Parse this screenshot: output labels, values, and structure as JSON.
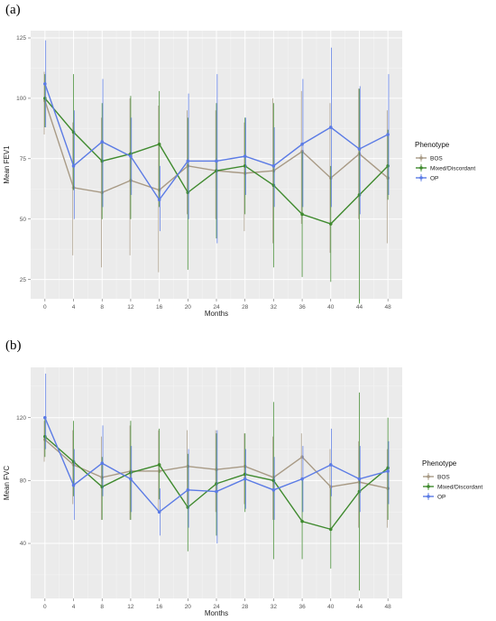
{
  "chart_data": [
    {
      "panel_label": "(a)",
      "type": "line",
      "xlabel": "Months",
      "ylabel": "Mean FEV1",
      "xticks": [
        0,
        4,
        8,
        12,
        16,
        20,
        24,
        28,
        32,
        36,
        40,
        44,
        48
      ],
      "yticks": [
        25,
        50,
        75,
        100,
        125
      ],
      "xlim": [
        -2,
        50
      ],
      "ylim": [
        17,
        128
      ],
      "grid": true,
      "legend": {
        "title": "Phenotype",
        "position": "right"
      },
      "x": [
        0,
        4,
        8,
        12,
        16,
        20,
        24,
        28,
        32,
        36,
        40,
        44,
        48
      ],
      "series": [
        {
          "name": "BOS",
          "color": "#a89a85",
          "values": [
            99,
            63,
            61,
            66,
            62,
            72,
            70,
            69,
            70,
            78,
            67,
            77,
            67
          ],
          "lower": [
            85,
            35,
            30,
            35,
            28,
            52,
            50,
            45,
            40,
            48,
            36,
            50,
            40
          ],
          "upper": [
            111,
            90,
            92,
            100,
            97,
            95,
            95,
            90,
            100,
            103,
            98,
            104,
            95
          ]
        },
        {
          "name": "Mixed/Discordant",
          "color": "#3f8a2e",
          "values": [
            100,
            86,
            74,
            77,
            81,
            61,
            70,
            72,
            64,
            52,
            48,
            60,
            72
          ],
          "lower": [
            88,
            62,
            50,
            50,
            55,
            29,
            42,
            52,
            30,
            26,
            24,
            15,
            58
          ],
          "upper": [
            110,
            110,
            98,
            101,
            103,
            92,
            98,
            92,
            98,
            78,
            72,
            104,
            87
          ]
        },
        {
          "name": "OP",
          "color": "#5b7be5",
          "values": [
            106,
            72,
            82,
            76,
            58,
            74,
            74,
            76,
            72,
            81,
            88,
            79,
            85
          ],
          "lower": [
            88,
            50,
            55,
            60,
            45,
            50,
            40,
            60,
            55,
            55,
            55,
            52,
            60
          ],
          "upper": [
            124,
            95,
            108,
            92,
            72,
            102,
            110,
            92,
            88,
            108,
            121,
            105,
            110
          ]
        }
      ]
    },
    {
      "panel_label": "(b)",
      "type": "line",
      "xlabel": "Months",
      "ylabel": "Mean FVC",
      "xticks": [
        0,
        4,
        8,
        12,
        16,
        20,
        24,
        28,
        32,
        36,
        40,
        44,
        48
      ],
      "yticks": [
        40,
        80,
        120
      ],
      "xlim": [
        -2,
        50
      ],
      "ylim": [
        5,
        152
      ],
      "grid": true,
      "legend": {
        "title": "Phenotype",
        "position": "right"
      },
      "x": [
        0,
        4,
        8,
        12,
        16,
        20,
        24,
        28,
        32,
        36,
        40,
        44,
        48
      ],
      "series": [
        {
          "name": "BOS",
          "color": "#a89a85",
          "values": [
            106,
            90,
            82,
            86,
            86,
            89,
            87,
            89,
            82,
            95,
            76,
            79,
            75
          ],
          "lower": [
            92,
            65,
            55,
            55,
            60,
            65,
            60,
            65,
            55,
            80,
            50,
            50,
            50
          ],
          "upper": [
            118,
            112,
            108,
            115,
            112,
            112,
            112,
            110,
            108,
            110,
            100,
            105,
            100
          ]
        },
        {
          "name": "Mixed/Discordant",
          "color": "#3f8a2e",
          "values": [
            108,
            92,
            76,
            85,
            90,
            63,
            78,
            84,
            80,
            54,
            49,
            73,
            88
          ],
          "lower": [
            95,
            70,
            55,
            55,
            68,
            35,
            45,
            60,
            30,
            30,
            24,
            10,
            55
          ],
          "upper": [
            120,
            118,
            95,
            118,
            113,
            97,
            110,
            110,
            130,
            80,
            75,
            136,
            120
          ]
        },
        {
          "name": "OP",
          "color": "#5b7be5",
          "values": [
            120,
            77,
            91,
            81,
            60,
            74,
            73,
            81,
            74,
            81,
            90,
            81,
            86
          ],
          "lower": [
            100,
            55,
            70,
            60,
            45,
            50,
            40,
            62,
            55,
            60,
            70,
            60,
            65
          ],
          "upper": [
            148,
            100,
            115,
            102,
            75,
            100,
            112,
            100,
            95,
            102,
            113,
            102,
            105
          ]
        }
      ]
    }
  ]
}
